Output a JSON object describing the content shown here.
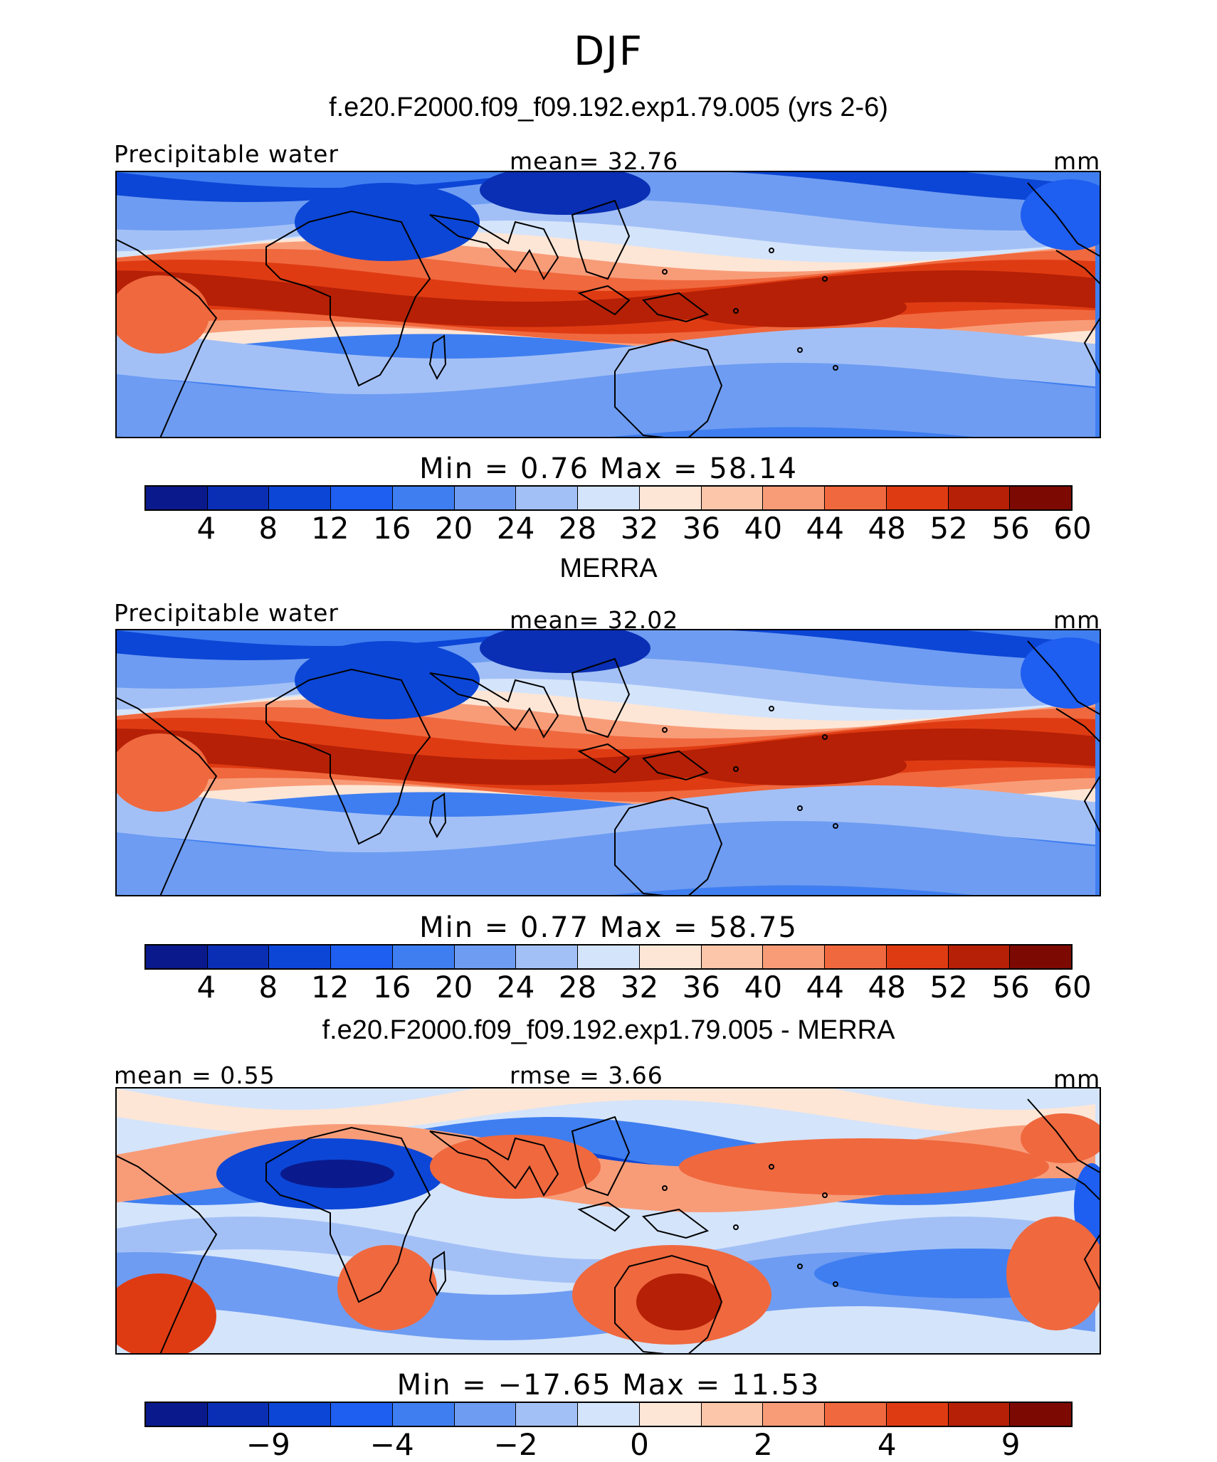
{
  "season": "DJF",
  "panels": [
    {
      "title": "f.e20.F2000.f09_f09.192.exp1.79.005 (yrs 2-6)",
      "left_label": "Precipitable water",
      "center_label": "mean=   32.76",
      "units": "mm",
      "minmax": "Min  =    0.76  Max  =   58.14",
      "ticks": [
        "4",
        "8",
        "12",
        "16",
        "20",
        "24",
        "28",
        "32",
        "36",
        "40",
        "44",
        "48",
        "52",
        "56",
        "60"
      ]
    },
    {
      "title": "MERRA",
      "left_label": "Precipitable water",
      "center_label": "mean=   32.02",
      "units": "mm",
      "minmax": "Min  =    0.77  Max  =   58.75",
      "ticks": [
        "4",
        "8",
        "12",
        "16",
        "20",
        "24",
        "28",
        "32",
        "36",
        "40",
        "44",
        "48",
        "52",
        "56",
        "60"
      ]
    },
    {
      "title": "f.e20.F2000.f09_f09.192.exp1.79.005 - MERRA",
      "left_label": "mean  =    0.55",
      "center_label": "rmse  =    3.66",
      "units": "mm",
      "minmax": "Min  = −17.65  Max  =   11.53",
      "ticks": [
        "−9",
        "−4",
        "−2",
        "0",
        "2",
        "4",
        "9"
      ]
    }
  ],
  "colors": {
    "field_scale": [
      "#0a1a8c",
      "#0a2fb4",
      "#0c46d6",
      "#1e5ef0",
      "#3f7ef0",
      "#6e9cf2",
      "#a3c0f6",
      "#d4e4fb",
      "#fde6d6",
      "#fbc6a9",
      "#f89c78",
      "#f0683e",
      "#df3b13",
      "#b52006",
      "#7d0a02"
    ],
    "diff_scale": [
      "#0a1a8c",
      "#0a2fb4",
      "#0c46d6",
      "#1e5ef0",
      "#3f7ef0",
      "#6e9cf2",
      "#a3c0f6",
      "#d4e4fb",
      "#fde6d6",
      "#fbc6a9",
      "#f89c78",
      "#f0683e",
      "#df3b13",
      "#b52006",
      "#7d0a02"
    ]
  }
}
